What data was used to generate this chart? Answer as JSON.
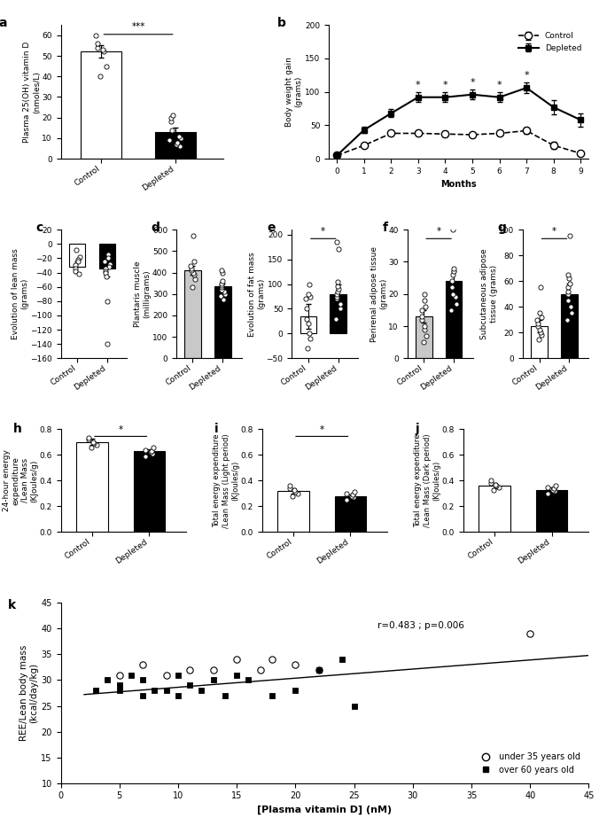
{
  "panel_a": {
    "label": "a",
    "bar_values": [
      52,
      13
    ],
    "bar_errors": [
      3,
      2
    ],
    "bar_colors": [
      "white",
      "black"
    ],
    "bar_edgecolors": [
      "black",
      "black"
    ],
    "categories": [
      "Control",
      "Depleted"
    ],
    "ylabel": "Plasma 25(OH) vitamin D\n(nmoles/L)",
    "ylim": [
      0,
      65
    ],
    "yticks": [
      0,
      10,
      20,
      30,
      40,
      50,
      60
    ],
    "significance": "***",
    "data_points_control": [
      40,
      45,
      52,
      53,
      54,
      56,
      60
    ],
    "data_points_depleted": [
      6,
      7,
      8,
      9,
      10,
      11,
      14,
      18,
      20,
      21
    ]
  },
  "panel_b": {
    "label": "b",
    "control_x": [
      0,
      1,
      2,
      3,
      4,
      5,
      6,
      7,
      8,
      9
    ],
    "control_y": [
      5,
      20,
      38,
      38,
      37,
      36,
      38,
      42,
      20,
      8
    ],
    "control_err": [
      2,
      3,
      4,
      4,
      4,
      3,
      4,
      5,
      5,
      3
    ],
    "depleted_x": [
      0,
      1,
      2,
      3,
      4,
      5,
      6,
      7,
      8,
      9
    ],
    "depleted_y": [
      5,
      43,
      68,
      92,
      92,
      96,
      92,
      106,
      77,
      58
    ],
    "depleted_err": [
      2,
      5,
      6,
      7,
      7,
      7,
      7,
      8,
      10,
      10
    ],
    "ylabel": "Body weight gain\n(grams)",
    "xlabel": "Months",
    "ylim": [
      0,
      200
    ],
    "yticks": [
      0,
      50,
      100,
      150,
      200
    ],
    "significant_months": [
      3,
      4,
      5,
      6,
      7
    ]
  },
  "panel_c": {
    "label": "c",
    "bar_values": [
      -32,
      -35
    ],
    "bar_errors": [
      8,
      10
    ],
    "bar_colors": [
      "white",
      "black"
    ],
    "bar_edgecolors": [
      "black",
      "black"
    ],
    "categories": [
      "Control",
      "Depleted"
    ],
    "ylabel": "Evolution of lean mass\n(grams)",
    "ylim": [
      -160,
      20
    ],
    "yticks": [
      -160,
      -140,
      -120,
      -100,
      -80,
      -60,
      -40,
      -20,
      0,
      20
    ],
    "data_points_control": [
      -8,
      -18,
      -22,
      -25,
      -30,
      -35,
      -38,
      -42
    ],
    "data_points_depleted": [
      -15,
      -20,
      -25,
      -28,
      -32,
      -35,
      -38,
      -40,
      -45,
      -80,
      -140
    ]
  },
  "panel_d": {
    "label": "d",
    "bar_values": [
      410,
      335
    ],
    "bar_errors": [
      20,
      12
    ],
    "bar_colors": [
      "#c8c8c8",
      "black"
    ],
    "bar_edgecolors": [
      "black",
      "black"
    ],
    "categories": [
      "Control",
      "Depleted"
    ],
    "ylabel": "Plantaris muscle\n(milligrams)",
    "ylim": [
      0,
      600
    ],
    "yticks": [
      0,
      100,
      200,
      300,
      400,
      500,
      600
    ],
    "data_points_control": [
      330,
      370,
      390,
      400,
      410,
      420,
      430,
      450,
      570
    ],
    "data_points_depleted": [
      275,
      290,
      300,
      310,
      320,
      330,
      340,
      350,
      360,
      400,
      410
    ]
  },
  "panel_e": {
    "label": "e",
    "bar_values": [
      35,
      80
    ],
    "bar_errors": [
      25,
      20
    ],
    "bar_colors": [
      "white",
      "black"
    ],
    "bar_edgecolors": [
      "black",
      "black"
    ],
    "categories": [
      "Control",
      "Depleted"
    ],
    "ylabel": "Evolution of fat mass\n(grams)",
    "ylim": [
      -50,
      210
    ],
    "yticks": [
      -50,
      0,
      50,
      100,
      150,
      200
    ],
    "significance": "*",
    "data_points_control": [
      -30,
      -10,
      0,
      20,
      30,
      50,
      70,
      75,
      80,
      100
    ],
    "data_points_depleted": [
      30,
      50,
      60,
      70,
      75,
      80,
      85,
      90,
      95,
      105,
      170,
      185
    ]
  },
  "panel_f": {
    "label": "f",
    "bar_values": [
      13,
      24
    ],
    "bar_errors": [
      2,
      3
    ],
    "bar_colors": [
      "#c8c8c8",
      "black"
    ],
    "bar_edgecolors": [
      "black",
      "black"
    ],
    "categories": [
      "Control",
      "Depleted"
    ],
    "ylabel": "Perirenal adipose tissue\n(grams)",
    "ylim": [
      0,
      40
    ],
    "yticks": [
      0,
      10,
      20,
      30,
      40
    ],
    "significance": "*",
    "data_points_control": [
      5,
      7,
      9,
      10,
      12,
      13,
      15,
      16,
      18,
      20
    ],
    "data_points_depleted": [
      15,
      17,
      19,
      20,
      22,
      24,
      26,
      27,
      28,
      40
    ]
  },
  "panel_g": {
    "label": "g",
    "bar_values": [
      25,
      50
    ],
    "bar_errors": [
      5,
      8
    ],
    "bar_colors": [
      "white",
      "black"
    ],
    "bar_edgecolors": [
      "black",
      "black"
    ],
    "categories": [
      "Control",
      "Depleted"
    ],
    "ylabel": "Subcutaneous adipose\ntissue (grams)",
    "ylim": [
      0,
      100
    ],
    "yticks": [
      0,
      20,
      40,
      60,
      80,
      100
    ],
    "significance": "*",
    "data_points_control": [
      15,
      18,
      20,
      22,
      25,
      27,
      30,
      32,
      35,
      55
    ],
    "data_points_depleted": [
      30,
      35,
      40,
      45,
      50,
      52,
      55,
      58,
      62,
      65,
      95
    ]
  },
  "panel_h": {
    "label": "h",
    "bar_values": [
      0.7,
      0.63
    ],
    "bar_errors": [
      0.025,
      0.015
    ],
    "bar_colors": [
      "white",
      "black"
    ],
    "bar_edgecolors": [
      "black",
      "black"
    ],
    "categories": [
      "Control",
      "Depleted"
    ],
    "ylabel": "24-hour energy\nexpenditure\n/Lean Mass\n(KJoules/g)",
    "ylim": [
      0,
      0.8
    ],
    "yticks": [
      0,
      0.2,
      0.4,
      0.6,
      0.8
    ],
    "significance": "*",
    "data_points_control": [
      0.66,
      0.68,
      0.69,
      0.7,
      0.72,
      0.73
    ],
    "data_points_depleted": [
      0.59,
      0.61,
      0.62,
      0.63,
      0.64,
      0.66
    ]
  },
  "panel_i": {
    "label": "i",
    "bar_values": [
      0.32,
      0.28
    ],
    "bar_errors": [
      0.02,
      0.01
    ],
    "bar_colors": [
      "white",
      "black"
    ],
    "bar_edgecolors": [
      "black",
      "black"
    ],
    "categories": [
      "Control",
      "Depleted"
    ],
    "ylabel": "Total energy expenditure\n/Lean Mass (Light period)\n(KJoules/g)",
    "ylim": [
      0,
      0.8
    ],
    "yticks": [
      0,
      0.2,
      0.4,
      0.6,
      0.8
    ],
    "significance": "*",
    "data_points_control": [
      0.28,
      0.3,
      0.31,
      0.33,
      0.34,
      0.36
    ],
    "data_points_depleted": [
      0.25,
      0.27,
      0.28,
      0.29,
      0.3,
      0.31
    ]
  },
  "panel_j": {
    "label": "j",
    "bar_values": [
      0.36,
      0.33
    ],
    "bar_errors": [
      0.02,
      0.02
    ],
    "bar_colors": [
      "white",
      "black"
    ],
    "bar_edgecolors": [
      "black",
      "black"
    ],
    "categories": [
      "Control",
      "Depleted"
    ],
    "ylabel": "Total energy expenditure\n/Lean Mass (Dark period)\n(KJoules/g)",
    "ylim": [
      0,
      0.8
    ],
    "yticks": [
      0,
      0.2,
      0.4,
      0.6,
      0.8
    ],
    "data_points_control": [
      0.33,
      0.35,
      0.36,
      0.37,
      0.38,
      0.4
    ],
    "data_points_depleted": [
      0.3,
      0.32,
      0.33,
      0.34,
      0.35,
      0.36
    ]
  },
  "panel_k": {
    "label": "k",
    "under35_x": [
      5,
      7,
      9,
      11,
      13,
      15,
      17,
      18,
      20,
      22,
      40
    ],
    "under35_y": [
      31,
      33,
      31,
      32,
      32,
      34,
      32,
      34,
      33,
      32,
      39
    ],
    "over60_x": [
      3,
      4,
      5,
      5,
      6,
      7,
      7,
      8,
      9,
      10,
      10,
      11,
      12,
      13,
      14,
      15,
      16,
      18,
      20,
      22,
      24,
      25
    ],
    "over60_y": [
      28,
      30,
      29,
      28,
      31,
      27,
      30,
      28,
      28,
      31,
      27,
      29,
      28,
      30,
      27,
      31,
      30,
      27,
      28,
      32,
      34,
      25
    ],
    "trendline_x": [
      2,
      45
    ],
    "trendline_y": [
      27.2,
      34.8
    ],
    "xlabel": "[Plasma vitamin D] (nM)",
    "ylabel": "REE/Lean body mass\n(kcal/day/kg)",
    "xlim": [
      0,
      45
    ],
    "ylim": [
      10,
      45
    ],
    "yticks": [
      10,
      15,
      20,
      25,
      30,
      35,
      40,
      45
    ],
    "xticks": [
      0,
      5,
      10,
      15,
      20,
      25,
      30,
      35,
      40,
      45
    ],
    "annotation": "r=0.483 ; p=0.006"
  }
}
